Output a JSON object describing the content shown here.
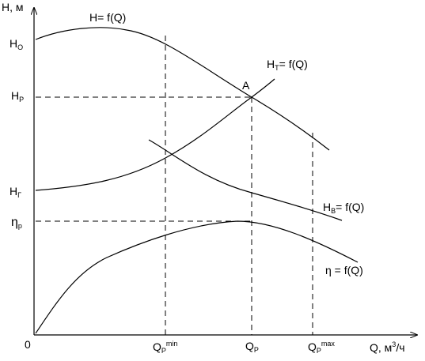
{
  "axes": {
    "y_title": "H, м",
    "x_title_main": "Q, м",
    "x_title_sup": "3",
    "x_title_tail": "/ч",
    "origin": "0"
  },
  "y_labels": {
    "h0_main": "H",
    "h0_sub": "O",
    "hp_main": "H",
    "hp_sub": "P",
    "hg_main": "H",
    "hg_sub": "Г",
    "eta_main": "η",
    "eta_sub": "p"
  },
  "x_labels": {
    "qmin_main": "Q",
    "qmin_sub": "P",
    "qmin_sup": "min",
    "qp_main": "Q",
    "qp_sub": "P",
    "qmax_main": "Q",
    "qmax_sub": "P",
    "qmax_sup": "max"
  },
  "curves": {
    "pump_label": "H= f(Q)",
    "system_main": "H",
    "system_sub": "T",
    "system_tail": "= f(Q)",
    "network_main": "H",
    "network_sub": "B",
    "network_tail": "= f(Q)",
    "efficiency_label": "η = f(Q)"
  },
  "point": {
    "label": "A"
  }
}
